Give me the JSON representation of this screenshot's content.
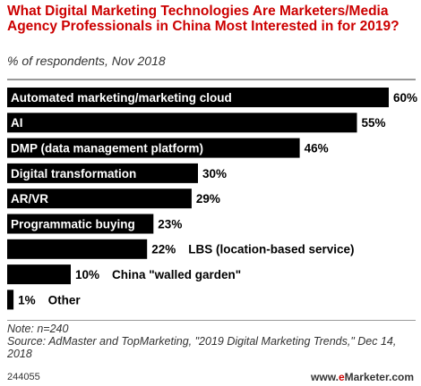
{
  "chart_data": {
    "type": "bar",
    "orientation": "horizontal",
    "title": "What Digital Marketing Technologies Are Marketers/Media Agency Professionals in China Most Interested in for 2019?",
    "subtitle": "% of respondents, Nov 2018",
    "categories": [
      "Automated marketing/marketing cloud",
      "AI",
      "DMP (data management platform)",
      "Digital transformation",
      "AR/VR",
      "Programmatic buying",
      "LBS (location-based service)",
      "China \"walled garden\"",
      "Other"
    ],
    "values": [
      60,
      55,
      46,
      30,
      29,
      23,
      22,
      10,
      1
    ],
    "value_labels": [
      "60%",
      "55%",
      "46%",
      "30%",
      "29%",
      "23%",
      "22%",
      "10%",
      "1%"
    ],
    "bar_color": "#000000",
    "xlim": [
      0,
      60
    ],
    "grid": false,
    "legend": "none"
  },
  "notes": {
    "line1": "Note: n=240",
    "line2": "Source: AdMaster and TopMarketing, \"2019 Digital Marketing Trends,\" Dec 14, 2018"
  },
  "footer": {
    "id": "244055",
    "brand_prefix": "www.",
    "brand_e": "e",
    "brand_suffix": "Marketer.com"
  }
}
